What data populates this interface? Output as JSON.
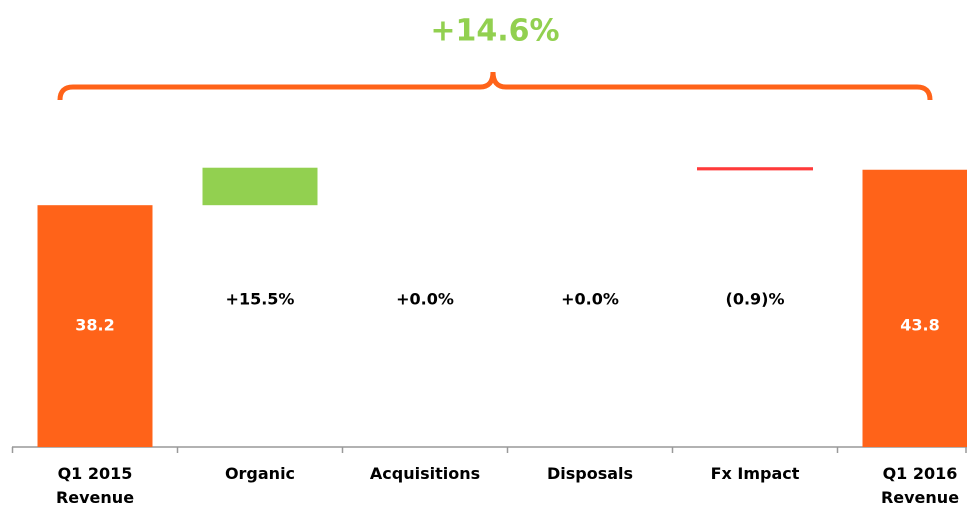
{
  "chart_data": {
    "type": "waterfall",
    "annotation": "+14.6%",
    "categories": [
      "Q1 2015 Revenue",
      "Organic",
      "Acquisitions",
      "Disposals",
      "Fx Impact",
      "Q1 2016 Revenue"
    ],
    "values": [
      38.2,
      15.5,
      0.0,
      0.0,
      -0.9,
      43.8
    ],
    "value_labels": [
      "38.2",
      "+15.5%",
      "+0.0%",
      "+0.0%",
      "(0.9)%",
      "43.8"
    ],
    "total_color": "#ff6319",
    "increase_color": "#92d050",
    "decrease_color": "#ff3b3b",
    "annotation_color": "#92d050"
  }
}
